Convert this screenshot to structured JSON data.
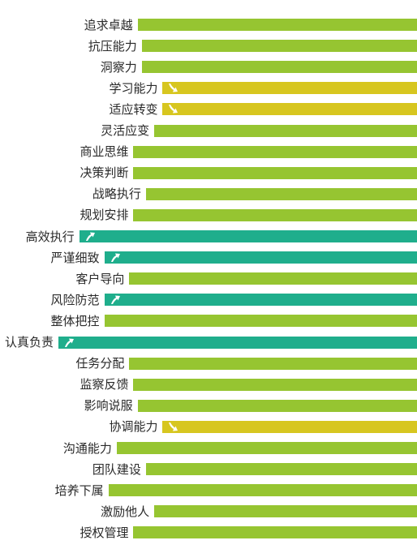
{
  "colors": {
    "low": "#96c531",
    "down": "#d7c61f",
    "up": "#1fae8c",
    "arrow": "#ffffff"
  },
  "chart_data": {
    "type": "bar",
    "orientation": "horizontal",
    "grid": false,
    "legend": "none",
    "xlim": [
      0,
      100
    ],
    "categories": [
      "追求卓越",
      "抗压能力",
      "洞察力",
      "学习能力",
      "适应转变",
      "灵活应变",
      "商业思维",
      "决策判断",
      "战略执行",
      "规划安排",
      "高效执行",
      "严谨细致",
      "客户导向",
      "风险防范",
      "整体把控",
      "认真负责",
      "任务分配",
      "监察反馈",
      "影响说服",
      "协调能力",
      "沟通能力",
      "团队建设",
      "培养下属",
      "激励他人",
      "授权管理"
    ],
    "values": [
      67,
      66,
      66,
      61,
      61,
      63,
      68,
      68,
      65,
      68,
      81,
      75,
      69,
      75,
      75,
      86,
      69,
      68,
      67,
      61,
      72,
      65,
      74,
      63,
      68
    ],
    "status": [
      "none",
      "none",
      "none",
      "down",
      "down",
      "none",
      "none",
      "none",
      "none",
      "none",
      "up",
      "up",
      "none",
      "up",
      "none",
      "up",
      "none",
      "none",
      "none",
      "down",
      "none",
      "none",
      "none",
      "none",
      "none"
    ]
  }
}
